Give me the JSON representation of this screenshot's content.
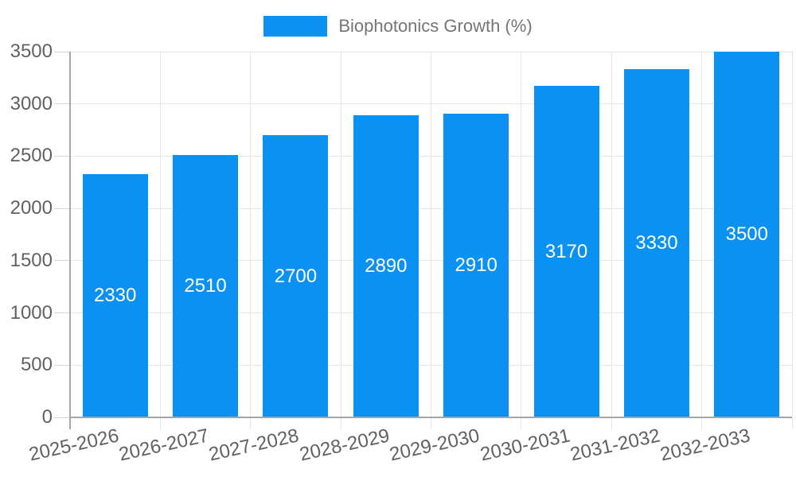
{
  "chart_data": {
    "type": "bar",
    "title": "",
    "legend": "Biophotonics Growth (%)",
    "legend_position": "top-center",
    "categories": [
      "2025-2026",
      "2026-2027",
      "2027-2028",
      "2028-2029",
      "2029-2030",
      "2030-2031",
      "2031-2032",
      "2032-2033"
    ],
    "values": [
      2330,
      2510,
      2700,
      2890,
      2910,
      3170,
      3330,
      3500
    ],
    "yticks": [
      0,
      500,
      1000,
      1500,
      2000,
      2500,
      3000,
      3500
    ],
    "ylim": [
      0,
      3500
    ],
    "grid": true,
    "bar_label_position": "center-inside",
    "colors": {
      "bar": "#0a91f2",
      "bar_label": "#ffffff",
      "axis_text": "#616161",
      "legend_text": "#757575",
      "gridline": "#e6e6e6",
      "axis_line": "#a6a6a6",
      "tick": "#d4d4d4",
      "background": "#ffffff"
    }
  }
}
